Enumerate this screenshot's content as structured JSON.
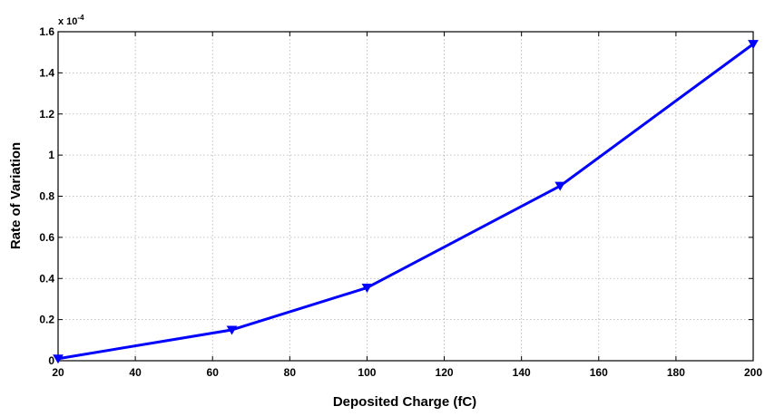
{
  "chart_data": {
    "type": "line",
    "title": "",
    "xlabel": "Deposited Charge (fC)",
    "ylabel": "Rate of Variation",
    "y_multiplier": {
      "base": "x 10",
      "exponent": "-4"
    },
    "xlim": [
      20,
      200
    ],
    "ylim": [
      0,
      1.6
    ],
    "x_ticks": [
      20,
      40,
      60,
      80,
      100,
      120,
      140,
      160,
      180,
      200
    ],
    "y_ticks": [
      0,
      0.2,
      0.4,
      0.6,
      0.8,
      1,
      1.2,
      1.4,
      1.6
    ],
    "x_tick_labels": [
      "20",
      "40",
      "60",
      "80",
      "100",
      "120",
      "140",
      "160",
      "180",
      "200"
    ],
    "y_tick_labels": [
      "0",
      "0.2",
      "0.4",
      "0.6",
      "0.8",
      "1",
      "1.2",
      "1.4",
      "1.6"
    ],
    "grid": true,
    "series": [
      {
        "color": "#0000ff",
        "marker": "triangle-down",
        "x": [
          20,
          65,
          100,
          150,
          200
        ],
        "y": [
          0.01,
          0.15,
          0.355,
          0.85,
          1.54
        ]
      }
    ]
  }
}
